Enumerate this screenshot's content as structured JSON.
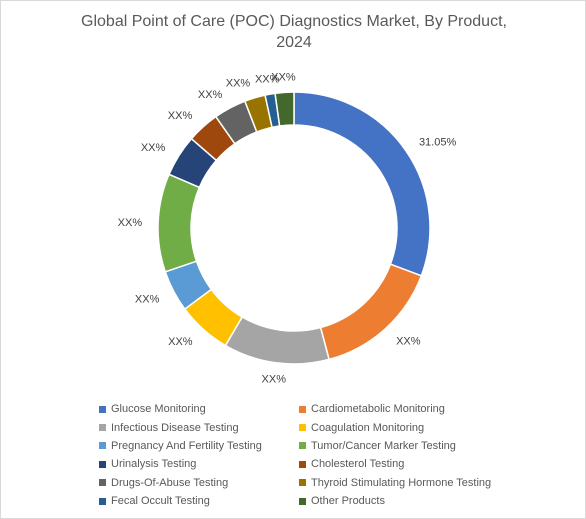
{
  "chart_data": {
    "type": "pie",
    "subtype": "donut",
    "title_line1": "Global Point of Care (POC) Diagnostics Market, By Product,",
    "title_line2": "2024",
    "slices": [
      {
        "name": "Glucose Monitoring",
        "value": 31.05,
        "label": "31.05%",
        "color": "#4472C4"
      },
      {
        "name": "Cardiometabolic Monitoring",
        "value": 15.3,
        "label": "XX%",
        "color": "#ED7D31"
      },
      {
        "name": "Infectious Disease Testing",
        "value": 12.7,
        "label": "XX%",
        "color": "#A5A5A5"
      },
      {
        "name": "Coagulation Monitoring",
        "value": 6.5,
        "label": "XX%",
        "color": "#FFC000"
      },
      {
        "name": "Pregnancy And Fertility Testing",
        "value": 5.0,
        "label": "XX%",
        "color": "#5B9BD5"
      },
      {
        "name": "Tumor/Cancer Marker Testing",
        "value": 11.8,
        "label": "XX%",
        "color": "#70AD47"
      },
      {
        "name": "Urinalysis Testing",
        "value": 5.0,
        "label": "XX%",
        "color": "#264478"
      },
      {
        "name": "Cholesterol Testing",
        "value": 3.9,
        "label": "XX%",
        "color": "#9E480E"
      },
      {
        "name": "Drugs-Of-Abuse Testing",
        "value": 3.9,
        "label": "XX%",
        "color": "#636363"
      },
      {
        "name": "Thyroid Stimulating Hormone Testing",
        "value": 2.5,
        "label": "XX%",
        "color": "#997300"
      },
      {
        "name": "Fecal Occult Testing",
        "value": 1.2,
        "label": "XX%",
        "color": "#255E91"
      },
      {
        "name": "Other Products",
        "value": 2.25,
        "label": "XX%",
        "color": "#43682B"
      }
    ],
    "legend_position": "bottom"
  }
}
